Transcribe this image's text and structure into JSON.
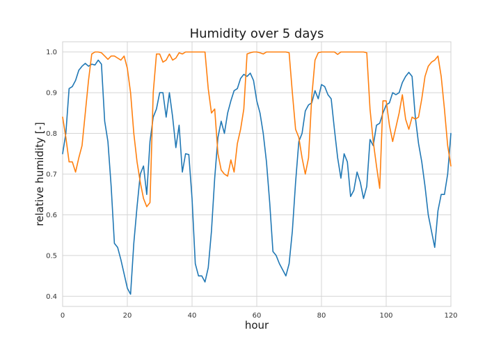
{
  "chart_data": {
    "type": "line",
    "title": "Humidity over 5 days",
    "xlabel": "hour",
    "ylabel": "relative humidity [-]",
    "xlim": [
      0,
      120
    ],
    "ylim": [
      0.375,
      1.025
    ],
    "xticks": [
      0,
      20,
      40,
      60,
      80,
      100,
      120
    ],
    "xtick_labels": [
      "0",
      "20",
      "40",
      "60",
      "80",
      "100",
      "120"
    ],
    "yticks": [
      0.4,
      0.5,
      0.6,
      0.7,
      0.8,
      0.9,
      1.0
    ],
    "ytick_labels": [
      "0.4",
      "0.5",
      "0.6",
      "0.7",
      "0.8",
      "0.9",
      "1.0"
    ],
    "grid": true,
    "series": [
      {
        "color": "#1f77b4",
        "x": [
          0,
          1,
          2,
          3,
          4,
          5,
          6,
          7,
          8,
          9,
          10,
          11,
          12,
          13,
          14,
          15,
          16,
          17,
          18,
          19,
          20,
          21,
          22,
          23,
          24,
          25,
          26,
          27,
          28,
          29,
          30,
          31,
          32,
          33,
          34,
          35,
          36,
          37,
          38,
          39,
          40,
          41,
          42,
          43,
          44,
          45,
          46,
          47,
          48,
          49,
          50,
          51,
          52,
          53,
          54,
          55,
          56,
          57,
          58,
          59,
          60,
          61,
          62,
          63,
          64,
          65,
          66,
          67,
          68,
          69,
          70,
          71,
          72,
          73,
          74,
          75,
          76,
          77,
          78,
          79,
          80,
          81,
          82,
          83,
          84,
          85,
          86,
          87,
          88,
          89,
          90,
          91,
          92,
          93,
          94,
          95,
          96,
          97,
          98,
          99,
          100,
          101,
          102,
          103,
          104,
          105,
          106,
          107,
          108,
          109,
          110,
          111,
          112,
          113,
          114,
          115,
          116,
          117,
          118,
          119,
          120
        ],
        "values": [
          0.75,
          0.8,
          0.91,
          0.915,
          0.93,
          0.955,
          0.965,
          0.972,
          0.965,
          0.97,
          0.968,
          0.98,
          0.97,
          0.83,
          0.78,
          0.67,
          0.53,
          0.52,
          0.49,
          0.455,
          0.42,
          0.405,
          0.53,
          0.62,
          0.7,
          0.72,
          0.65,
          0.78,
          0.84,
          0.86,
          0.9,
          0.9,
          0.84,
          0.9,
          0.84,
          0.765,
          0.82,
          0.705,
          0.75,
          0.748,
          0.64,
          0.48,
          0.45,
          0.45,
          0.435,
          0.47,
          0.56,
          0.69,
          0.79,
          0.83,
          0.8,
          0.85,
          0.88,
          0.905,
          0.91,
          0.935,
          0.945,
          0.94,
          0.948,
          0.93,
          0.88,
          0.85,
          0.8,
          0.73,
          0.63,
          0.51,
          0.5,
          0.48,
          0.465,
          0.45,
          0.48,
          0.56,
          0.68,
          0.78,
          0.8,
          0.855,
          0.87,
          0.875,
          0.905,
          0.885,
          0.92,
          0.915,
          0.895,
          0.885,
          0.81,
          0.74,
          0.69,
          0.75,
          0.73,
          0.645,
          0.66,
          0.705,
          0.68,
          0.64,
          0.67,
          0.785,
          0.77,
          0.82,
          0.825,
          0.85,
          0.87,
          0.875,
          0.9,
          0.895,
          0.9,
          0.925,
          0.94,
          0.95,
          0.94,
          0.84,
          0.775,
          0.73,
          0.67,
          0.6,
          0.56,
          0.52,
          0.61,
          0.65,
          0.65,
          0.7,
          0.8
        ]
      },
      {
        "color": "#ff7f0e",
        "x": [
          0,
          1,
          2,
          3,
          4,
          5,
          6,
          7,
          8,
          9,
          10,
          11,
          12,
          13,
          14,
          15,
          16,
          17,
          18,
          19,
          20,
          21,
          22,
          23,
          24,
          25,
          26,
          27,
          28,
          29,
          30,
          31,
          32,
          33,
          34,
          35,
          36,
          37,
          38,
          39,
          40,
          41,
          42,
          43,
          44,
          45,
          46,
          47,
          48,
          49,
          50,
          51,
          52,
          53,
          54,
          55,
          56,
          57,
          58,
          59,
          60,
          61,
          62,
          63,
          64,
          65,
          66,
          67,
          68,
          69,
          70,
          71,
          72,
          73,
          74,
          75,
          76,
          77,
          78,
          79,
          80,
          81,
          82,
          83,
          84,
          85,
          86,
          87,
          88,
          89,
          90,
          91,
          92,
          93,
          94,
          95,
          96,
          97,
          98,
          99,
          100,
          101,
          102,
          103,
          104,
          105,
          106,
          107,
          108,
          109,
          110,
          111,
          112,
          113,
          114,
          115,
          116,
          117,
          118,
          119,
          120
        ],
        "values": [
          0.84,
          0.79,
          0.73,
          0.73,
          0.705,
          0.74,
          0.77,
          0.85,
          0.93,
          0.995,
          1.0,
          1.0,
          0.998,
          0.99,
          0.982,
          0.99,
          0.99,
          0.985,
          0.98,
          0.99,
          0.96,
          0.9,
          0.8,
          0.73,
          0.68,
          0.64,
          0.62,
          0.63,
          0.9,
          0.995,
          0.995,
          0.975,
          0.98,
          0.995,
          0.98,
          0.985,
          0.998,
          0.995,
          1.0,
          1.0,
          1.0,
          1.0,
          1.0,
          1.0,
          1.0,
          0.91,
          0.85,
          0.86,
          0.75,
          0.71,
          0.7,
          0.695,
          0.735,
          0.705,
          0.775,
          0.81,
          0.86,
          0.995,
          0.998,
          1.0,
          1.0,
          0.998,
          0.995,
          1.0,
          1.0,
          1.0,
          1.0,
          1.0,
          1.0,
          1.0,
          0.998,
          0.9,
          0.81,
          0.79,
          0.74,
          0.7,
          0.74,
          0.89,
          0.98,
          0.998,
          1.0,
          1.0,
          1.0,
          1.0,
          1.0,
          0.994,
          1.0,
          1.0,
          1.0,
          1.0,
          1.0,
          1.0,
          1.0,
          1.0,
          0.998,
          0.86,
          0.78,
          0.72,
          0.665,
          0.88,
          0.88,
          0.82,
          0.78,
          0.815,
          0.85,
          0.895,
          0.835,
          0.81,
          0.84,
          0.835,
          0.84,
          0.885,
          0.94,
          0.965,
          0.975,
          0.98,
          0.99,
          0.94,
          0.86,
          0.77,
          0.72
        ]
      }
    ]
  }
}
